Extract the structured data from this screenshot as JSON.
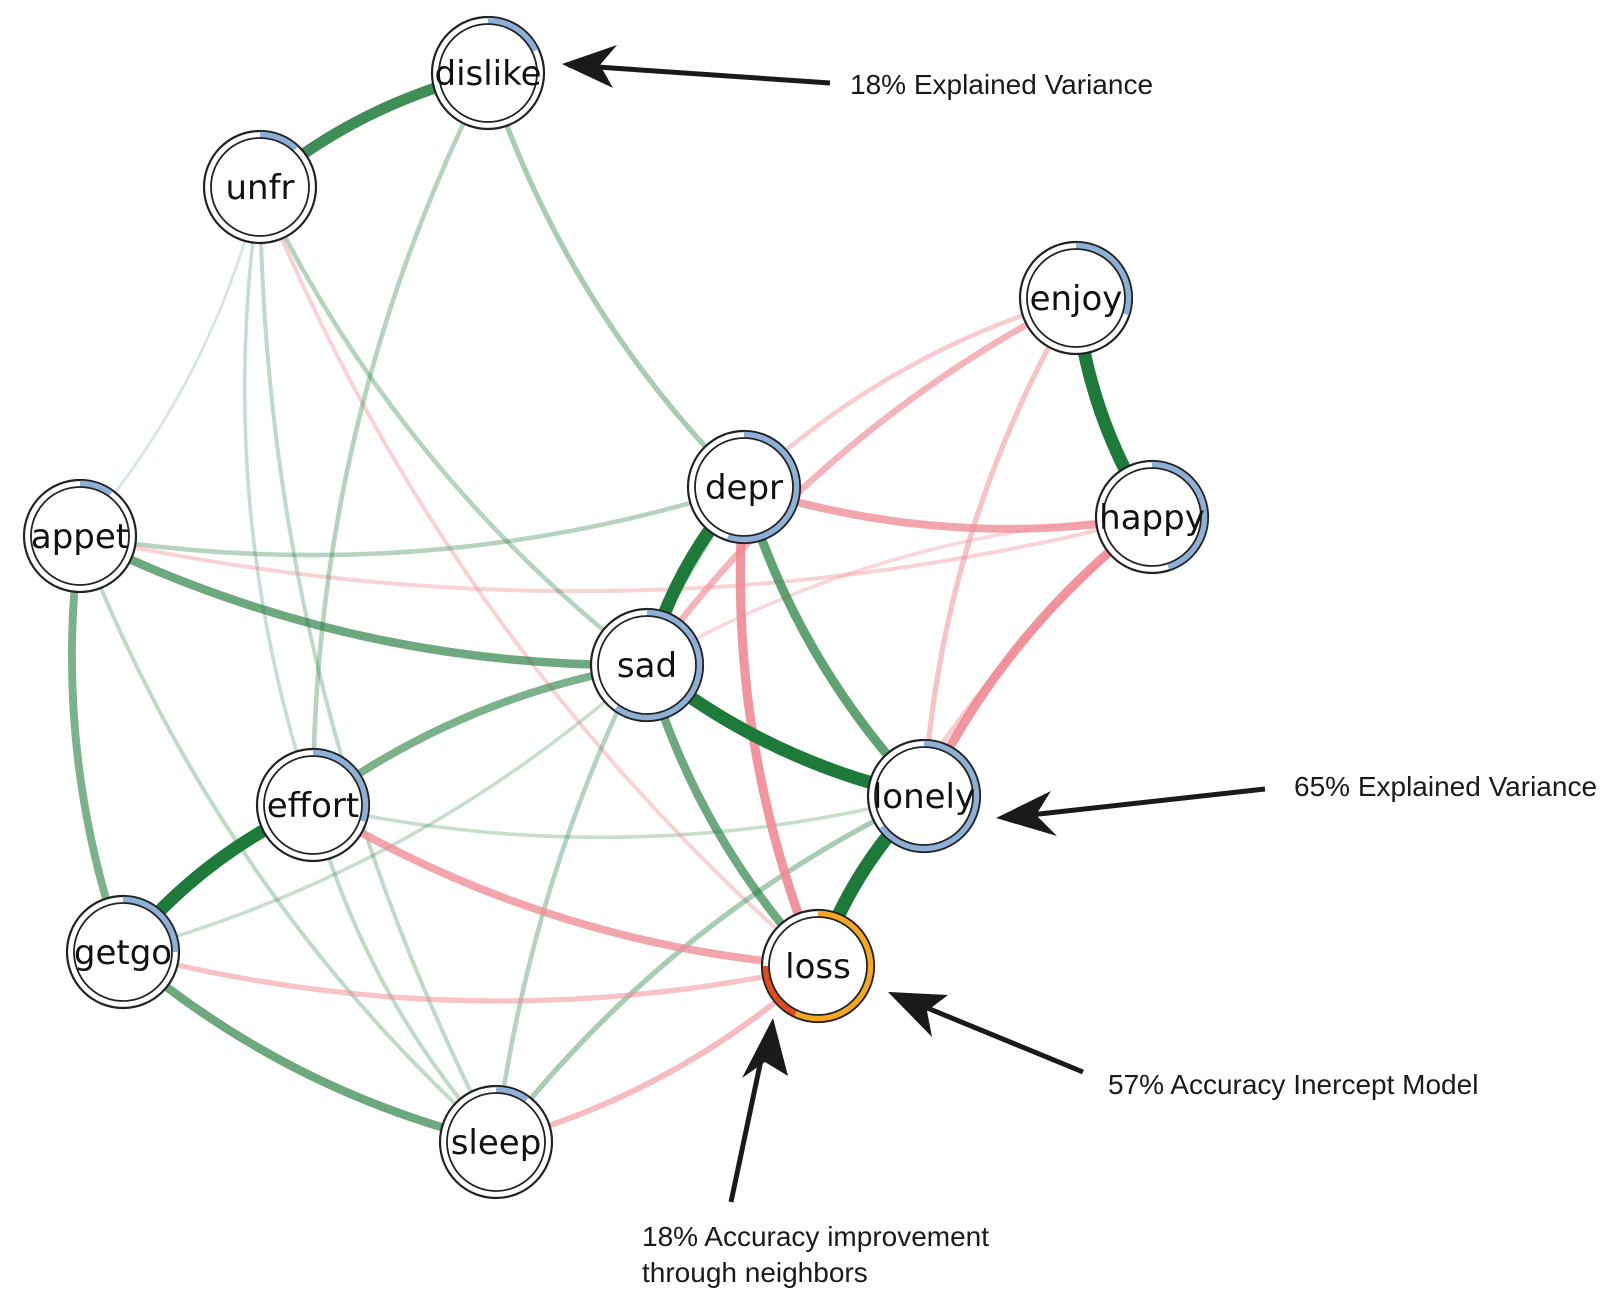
{
  "nodes": [
    {
      "id": "dislike",
      "label": "dislike",
      "ev": 0.18,
      "ring": "blue"
    },
    {
      "id": "unfr",
      "label": "unfr",
      "ev": 0.12,
      "ring": "blue"
    },
    {
      "id": "enjoy",
      "label": "enjoy",
      "ev": 0.3,
      "ring": "blue"
    },
    {
      "id": "happy",
      "label": "happy",
      "ev": 0.45,
      "ring": "blue"
    },
    {
      "id": "depr",
      "label": "depr",
      "ev": 0.55,
      "ring": "blue"
    },
    {
      "id": "appet",
      "label": "appet",
      "ev": 0.1,
      "ring": "blue"
    },
    {
      "id": "sad",
      "label": "sad",
      "ev": 0.6,
      "ring": "blue"
    },
    {
      "id": "effort",
      "label": "effort",
      "ev": 0.3,
      "ring": "blue"
    },
    {
      "id": "lonely",
      "label": "lonely",
      "ev": 0.65,
      "ring": "blue"
    },
    {
      "id": "getgo",
      "label": "getgo",
      "ev": 0.25,
      "ring": "blue"
    },
    {
      "id": "loss",
      "label": "loss",
      "intercept_acc": 0.57,
      "improvement": 0.18,
      "ring": "orange"
    },
    {
      "id": "sleep",
      "label": "sleep",
      "ev": 0.1,
      "ring": "blue"
    }
  ],
  "edges": [
    {
      "from": "dislike",
      "to": "unfr",
      "sign": "pos",
      "weight": 0.7
    },
    {
      "from": "enjoy",
      "to": "happy",
      "sign": "pos",
      "weight": 0.85
    },
    {
      "from": "depr",
      "to": "sad",
      "sign": "pos",
      "weight": 0.85
    },
    {
      "from": "sad",
      "to": "lonely",
      "sign": "pos",
      "weight": 0.85
    },
    {
      "from": "lonely",
      "to": "loss",
      "sign": "pos",
      "weight": 0.9
    },
    {
      "from": "effort",
      "to": "getgo",
      "sign": "pos",
      "weight": 0.85
    },
    {
      "from": "getgo",
      "to": "sleep",
      "sign": "pos",
      "weight": 0.5
    },
    {
      "from": "appet",
      "to": "getgo",
      "sign": "pos",
      "weight": 0.45
    },
    {
      "from": "appet",
      "to": "sad",
      "sign": "pos",
      "weight": 0.5
    },
    {
      "from": "sad",
      "to": "effort",
      "sign": "pos",
      "weight": 0.45
    },
    {
      "from": "depr",
      "to": "lonely",
      "sign": "pos",
      "weight": 0.55
    },
    {
      "from": "sad",
      "to": "loss",
      "sign": "pos",
      "weight": 0.5
    },
    {
      "from": "dislike",
      "to": "depr",
      "sign": "pos",
      "weight": 0.25
    },
    {
      "from": "dislike",
      "to": "effort",
      "sign": "pos",
      "weight": 0.2
    },
    {
      "from": "unfr",
      "to": "sad",
      "sign": "pos",
      "weight": 0.2
    },
    {
      "from": "unfr",
      "to": "sleep",
      "sign": "pos",
      "weight": 0.15
    },
    {
      "from": "appet",
      "to": "depr",
      "sign": "pos",
      "weight": 0.2
    },
    {
      "from": "appet",
      "to": "sleep",
      "sign": "pos",
      "weight": 0.15
    },
    {
      "from": "lonely",
      "to": "sleep",
      "sign": "pos",
      "weight": 0.25
    },
    {
      "from": "depr",
      "to": "sleep",
      "sign": "pos",
      "weight": 0.2
    },
    {
      "from": "effort",
      "to": "sleep",
      "sign": "pos",
      "weight": 0.15
    },
    {
      "from": "effort",
      "to": "lonely",
      "sign": "pos",
      "weight": 0.12
    },
    {
      "from": "getgo",
      "to": "sad",
      "sign": "pos",
      "weight": 0.12
    },
    {
      "from": "unfr",
      "to": "effort",
      "sign": "pos",
      "weight": 0.12
    },
    {
      "from": "appet",
      "to": "unfr",
      "sign": "pos",
      "weight": 0.06
    },
    {
      "from": "depr",
      "to": "happy",
      "sign": "neg",
      "weight": 0.45
    },
    {
      "from": "depr",
      "to": "loss",
      "sign": "neg",
      "weight": 0.55
    },
    {
      "from": "happy",
      "to": "lonely",
      "sign": "neg",
      "weight": 0.55
    },
    {
      "from": "effort",
      "to": "loss",
      "sign": "neg",
      "weight": 0.45
    },
    {
      "from": "enjoy",
      "to": "sad",
      "sign": "neg",
      "weight": 0.35
    },
    {
      "from": "enjoy",
      "to": "lonely",
      "sign": "neg",
      "weight": 0.25
    },
    {
      "from": "enjoy",
      "to": "depr",
      "sign": "neg",
      "weight": 0.2
    },
    {
      "from": "getgo",
      "to": "loss",
      "sign": "neg",
      "weight": 0.25
    },
    {
      "from": "sleep",
      "to": "loss",
      "sign": "neg",
      "weight": 0.3
    },
    {
      "from": "unfr",
      "to": "loss",
      "sign": "neg",
      "weight": 0.15
    },
    {
      "from": "appet",
      "to": "happy",
      "sign": "neg",
      "weight": 0.15
    },
    {
      "from": "happy",
      "to": "loss",
      "sign": "neg",
      "weight": 0.2
    },
    {
      "from": "happy",
      "to": "sad",
      "sign": "neg",
      "weight": 0.12
    }
  ],
  "annotations": [
    {
      "id": "dislike_ev",
      "text": "18% Explained Variance"
    },
    {
      "id": "lonely_ev",
      "text": "65% Explained Variance"
    },
    {
      "id": "loss_intercept",
      "text": "57% Accuracy Inercept Model"
    },
    {
      "id": "loss_improve_l1",
      "text": "18% Accuracy improvement"
    },
    {
      "id": "loss_improve_l2",
      "text": "through neighbors"
    }
  ],
  "colors": {
    "edge_positive": "#1e7a3a",
    "edge_negative": "#f08a94",
    "ring_explained": "#8fb0d6",
    "ring_intercept": "#f5a623",
    "ring_improvement": "#e24a1f",
    "node_fill": "#ffffff",
    "node_stroke": "#222222",
    "arrow": "#1a1a1a"
  }
}
